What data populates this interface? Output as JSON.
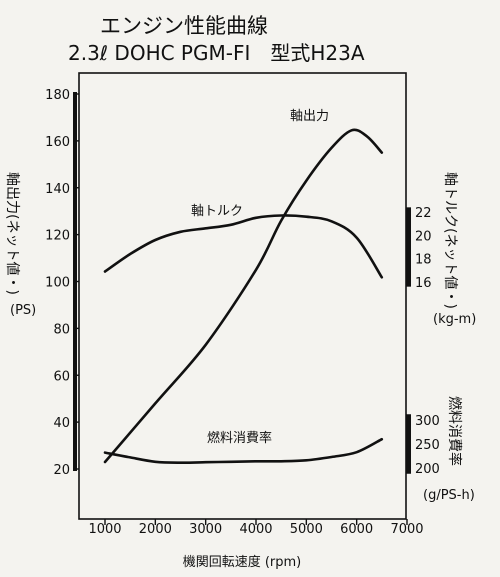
{
  "title": {
    "line1": "エンジン性能曲線",
    "line2": "2.3ℓ DOHC PGM-FI　型式H23A"
  },
  "chart_data": {
    "type": "line",
    "xlabel": "機関回転速度 (rpm)",
    "x_ticks": [
      1000,
      2000,
      3000,
      4000,
      5000,
      6000,
      7000
    ],
    "xlim": [
      500,
      7000
    ],
    "left_axis": {
      "label": "軸出力(ネット値・)",
      "unit": "(PS)",
      "ylim": [
        15,
        185
      ],
      "ticks": [
        20,
        40,
        60,
        80,
        100,
        120,
        140,
        160,
        180
      ]
    },
    "torque_axis": {
      "label": "軸トルク(ネット値・)",
      "unit": "(kg-m)",
      "ticks": [
        16,
        18,
        20,
        22
      ]
    },
    "fuel_axis": {
      "label": "燃料消費率",
      "unit": "(g/PS-h)",
      "ticks": [
        200,
        250,
        300
      ]
    },
    "series": [
      {
        "name": "軸出力",
        "axis": "power",
        "points": [
          [
            1000,
            23
          ],
          [
            2000,
            48
          ],
          [
            3000,
            73
          ],
          [
            4000,
            105
          ],
          [
            4500,
            126
          ],
          [
            5000,
            143
          ],
          [
            5500,
            157
          ],
          [
            5900,
            164.5
          ],
          [
            6200,
            162
          ],
          [
            6500,
            155
          ]
        ]
      },
      {
        "name": "軸トルク",
        "axis": "torque",
        "points": [
          [
            1000,
            16.9
          ],
          [
            1500,
            18.4
          ],
          [
            2000,
            19.6
          ],
          [
            2500,
            20.3
          ],
          [
            3000,
            20.6
          ],
          [
            3500,
            20.9
          ],
          [
            4000,
            21.5
          ],
          [
            4500,
            21.7
          ],
          [
            5000,
            21.6
          ],
          [
            5500,
            21.2
          ],
          [
            6000,
            19.8
          ],
          [
            6500,
            16.4
          ]
        ]
      },
      {
        "name": "燃料消費率",
        "axis": "fuel",
        "points": [
          [
            1000,
            232
          ],
          [
            1500,
            222
          ],
          [
            2000,
            213
          ],
          [
            2500,
            211
          ],
          [
            3000,
            212
          ],
          [
            3500,
            213
          ],
          [
            4000,
            214
          ],
          [
            4500,
            214
          ],
          [
            5000,
            216
          ],
          [
            5500,
            223
          ],
          [
            6000,
            233
          ],
          [
            6500,
            260
          ]
        ]
      }
    ]
  }
}
